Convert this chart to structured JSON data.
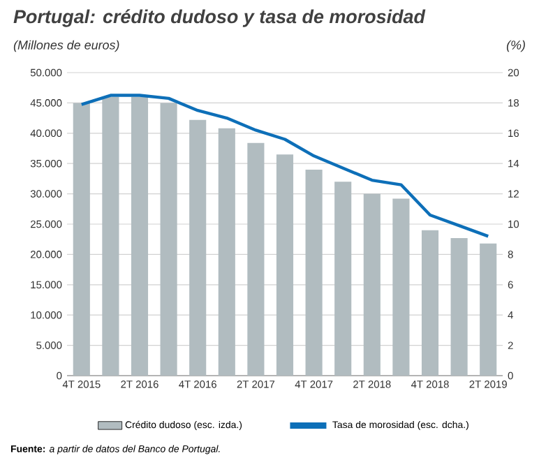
{
  "chart_data": {
    "type": "bar",
    "title": "Portugal: crédito dudoso y tasa de morosidad",
    "ylabel": "(Millones de euros)",
    "y2label": "(%)",
    "categories": [
      "4T 2015",
      null,
      "2T 2016",
      null,
      "4T 2016",
      null,
      "2T 2017",
      null,
      "4T 2017",
      null,
      "2T 2018",
      null,
      "4T 2018",
      null,
      "2T 2019"
    ],
    "series": [
      {
        "name": "Crédito dudoso (esc. izda.)",
        "color": "#b1bcc0",
        "values": [
          45000,
          46000,
          46000,
          45000,
          42200,
          40800,
          38400,
          36500,
          34000,
          32000,
          30000,
          29200,
          24000,
          22700,
          21800
        ]
      },
      {
        "name": "Tasa de morosidad (esc. dcha.)",
        "type": "line",
        "axis": "y2",
        "color": "#0d6fb8",
        "values": [
          17.9,
          18.5,
          18.5,
          18.3,
          17.5,
          17.0,
          16.2,
          15.6,
          14.5,
          13.7,
          12.9,
          12.6,
          10.6,
          9.9,
          9.2
        ]
      }
    ],
    "ylim": [
      0,
      50000
    ],
    "yticks": [
      {
        "value": 0,
        "label": "0"
      },
      {
        "value": 5000,
        "label": "5.000"
      },
      {
        "value": 10000,
        "label": "10.000"
      },
      {
        "value": 15000,
        "label": "15.000"
      },
      {
        "value": 20000,
        "label": "20.000"
      },
      {
        "value": 25000,
        "label": "25.000"
      },
      {
        "value": 30000,
        "label": "30.000"
      },
      {
        "value": 35000,
        "label": "35.000"
      },
      {
        "value": 40000,
        "label": "40.000"
      },
      {
        "value": 45000,
        "label": "45.000"
      },
      {
        "value": 50000,
        "label": "50.000"
      }
    ],
    "y2lim": [
      0,
      20
    ],
    "y2ticks": [
      0,
      2,
      4,
      6,
      8,
      10,
      12,
      14,
      16,
      18,
      20
    ],
    "grid": "y",
    "legend": "bottom",
    "marker": "none",
    "line_style": "solid",
    "annotations": [
      "**Fuente:** *a partir de datos del Banco de Portugal.*"
    ]
  }
}
